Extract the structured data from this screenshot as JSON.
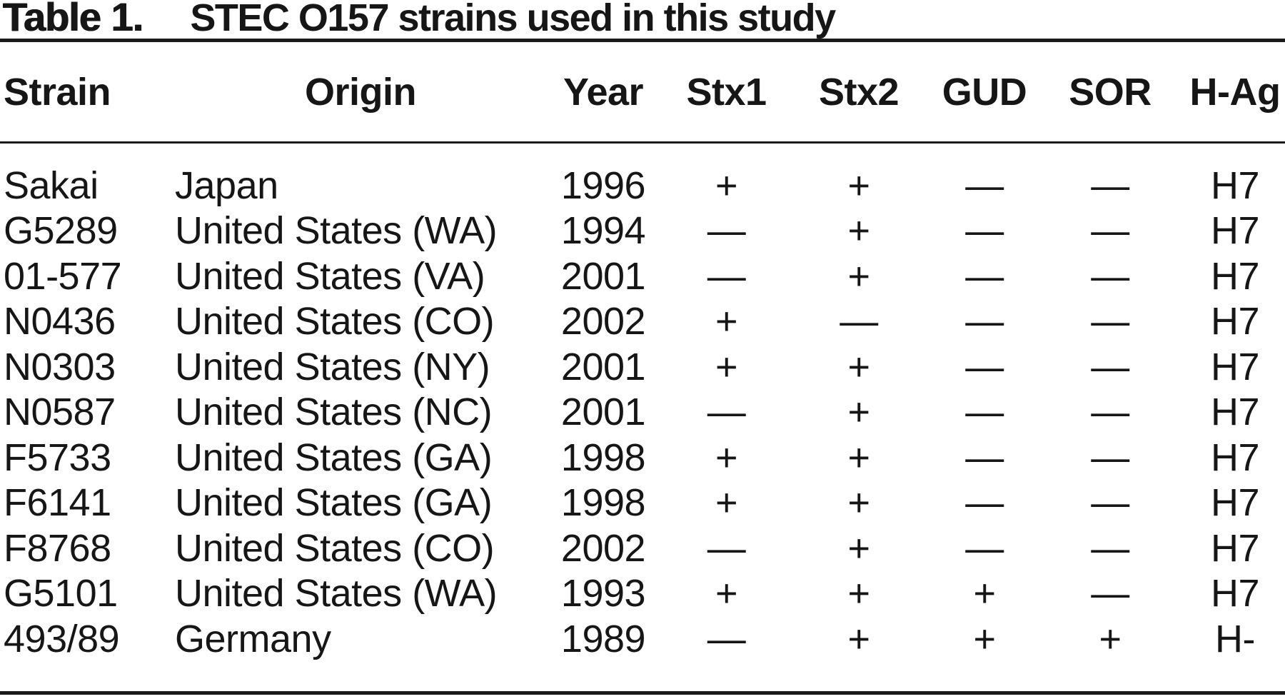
{
  "figure": {
    "title_label": "Table 1.",
    "title_caption": "STEC O157 strains used in this study"
  },
  "table": {
    "columns": [
      {
        "key": "strain",
        "label": "Strain",
        "align": "left"
      },
      {
        "key": "origin",
        "label": "Origin",
        "align": "center",
        "data_align": "left"
      },
      {
        "key": "year",
        "label": "Year",
        "align": "center"
      },
      {
        "key": "stx1",
        "label": "Stx1",
        "align": "center"
      },
      {
        "key": "stx2",
        "label": "Stx2",
        "align": "center"
      },
      {
        "key": "gud",
        "label": "GUD",
        "align": "center"
      },
      {
        "key": "sor",
        "label": "SOR",
        "align": "center"
      },
      {
        "key": "h_ag",
        "label": "H-Ag",
        "align": "center"
      }
    ],
    "rows": [
      [
        "Sakai",
        "Japan",
        "1996",
        "+",
        "+",
        "—",
        "—",
        "H7"
      ],
      [
        "G5289",
        "United States (WA)",
        "1994",
        "—",
        "+",
        "—",
        "—",
        "H7"
      ],
      [
        "01-577",
        "United States (VA)",
        "2001",
        "—",
        "+",
        "—",
        "—",
        "H7"
      ],
      [
        "N0436",
        "United States (CO)",
        "2002",
        "+",
        "—",
        "—",
        "—",
        "H7"
      ],
      [
        "N0303",
        "United States (NY)",
        "2001",
        "+",
        "+",
        "—",
        "—",
        "H7"
      ],
      [
        "N0587",
        "United States (NC)",
        "2001",
        "—",
        "+",
        "—",
        "—",
        "H7"
      ],
      [
        "F5733",
        "United States (GA)",
        "1998",
        "+",
        "+",
        "—",
        "—",
        "H7"
      ],
      [
        "F6141",
        "United States (GA)",
        "1998",
        "+",
        "+",
        "—",
        "—",
        "H7"
      ],
      [
        "F8768",
        "United States (CO)",
        "2002",
        "—",
        "+",
        "—",
        "—",
        "H7"
      ],
      [
        "G5101",
        "United States (WA)",
        "1993",
        "+",
        "+",
        "+",
        "—",
        "H7"
      ],
      [
        "493/89",
        "Germany",
        "1989",
        "—",
        "+",
        "+",
        "+",
        "H-"
      ]
    ]
  },
  "colors": {
    "text": "#161616",
    "rule": "#1a1a1a",
    "background": "#ffffff"
  }
}
